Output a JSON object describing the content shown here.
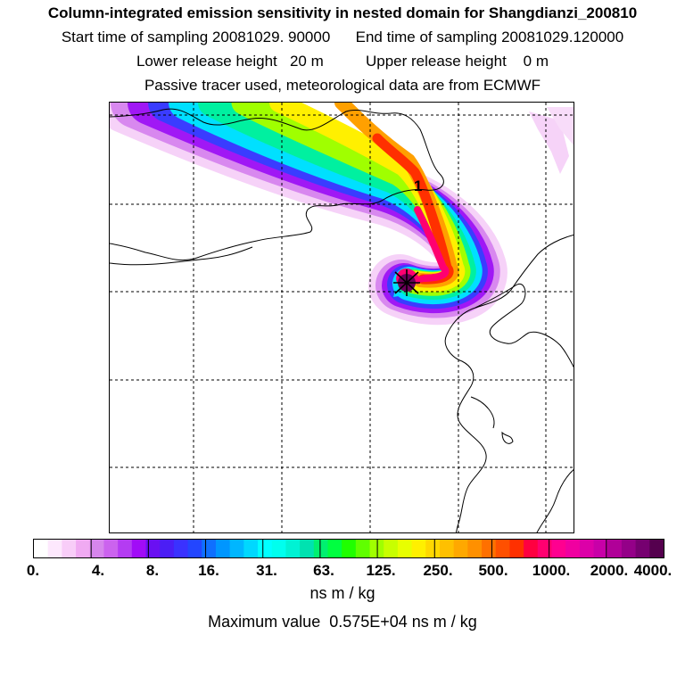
{
  "header": {
    "title": "Column-integrated emission sensitivity in nested domain for Shangdianzi_200810",
    "line1": "Start time of sampling 20081029. 90000      End time of sampling 20081029.120000",
    "line2": "Lower release height   20 m          Upper release height    0 m",
    "line3": "Passive tracer used, meteorological data are from ECMWF"
  },
  "map": {
    "plume_label": "1",
    "gridlines_visible": true,
    "release_site_marker": "x-star-icon"
  },
  "colorbar": {
    "tick_labels": [
      "0.",
      "4.",
      "8.",
      "16.",
      "31.",
      "63.",
      "125.",
      "250.",
      "500.",
      "1000.",
      "2000.",
      "4000."
    ],
    "units": "ns m / kg",
    "colors": [
      "#ffffff",
      "#fde8fd",
      "#f8cdf8",
      "#f0aaf2",
      "#d686ec",
      "#cb63ee",
      "#b43cf2",
      "#a10cf7",
      "#6a10f2",
      "#4b1ef5",
      "#3a32ff",
      "#2346ff",
      "#0f6fff",
      "#0096ff",
      "#00b6ff",
      "#00d8ff",
      "#00ffff",
      "#00ffee",
      "#00f2d4",
      "#00e2b0",
      "#00f070",
      "#00ff40",
      "#20ff00",
      "#60ff00",
      "#a0ff00",
      "#c8ff00",
      "#e8ff00",
      "#fff000",
      "#ffd800",
      "#ffc000",
      "#ffa800",
      "#ff9000",
      "#ff7000",
      "#ff5000",
      "#ff3000",
      "#ff0040",
      "#ff0070",
      "#ff0090",
      "#f000a0",
      "#dc00a8",
      "#c800a8",
      "#b00098",
      "#940088",
      "#760070",
      "#55004e"
    ]
  },
  "footer": {
    "max_label": "Maximum value  0.575E+04 ns m / kg"
  }
}
